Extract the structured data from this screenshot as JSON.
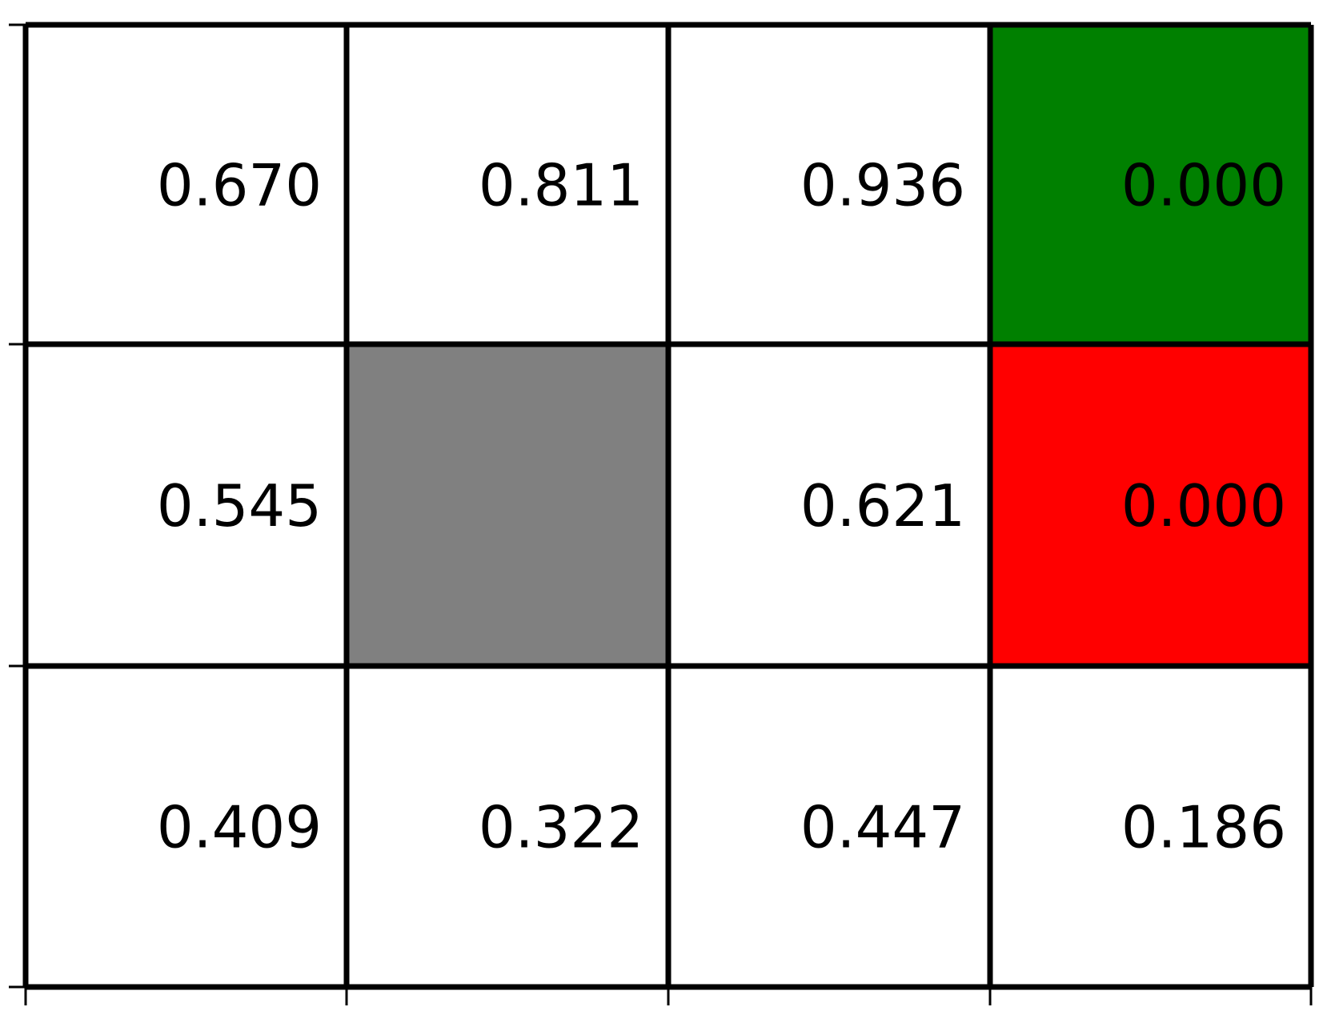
{
  "grid": {
    "rows": 3,
    "cols": 4,
    "cells": [
      [
        {
          "value": "0.670",
          "fill": "#ffffff"
        },
        {
          "value": "0.811",
          "fill": "#ffffff"
        },
        {
          "value": "0.936",
          "fill": "#ffffff"
        },
        {
          "value": "0.000",
          "fill": "#008000",
          "kind": "goal"
        }
      ],
      [
        {
          "value": "0.545",
          "fill": "#ffffff"
        },
        {
          "value": "",
          "fill": "#808080",
          "kind": "wall"
        },
        {
          "value": "0.621",
          "fill": "#ffffff"
        },
        {
          "value": "0.000",
          "fill": "#ff0000",
          "kind": "pit"
        }
      ],
      [
        {
          "value": "0.409",
          "fill": "#ffffff"
        },
        {
          "value": "0.322",
          "fill": "#ffffff"
        },
        {
          "value": "0.447",
          "fill": "#ffffff"
        },
        {
          "value": "0.186",
          "fill": "#ffffff"
        }
      ]
    ]
  },
  "colors": {
    "line": "#000000",
    "text": "#000000"
  }
}
